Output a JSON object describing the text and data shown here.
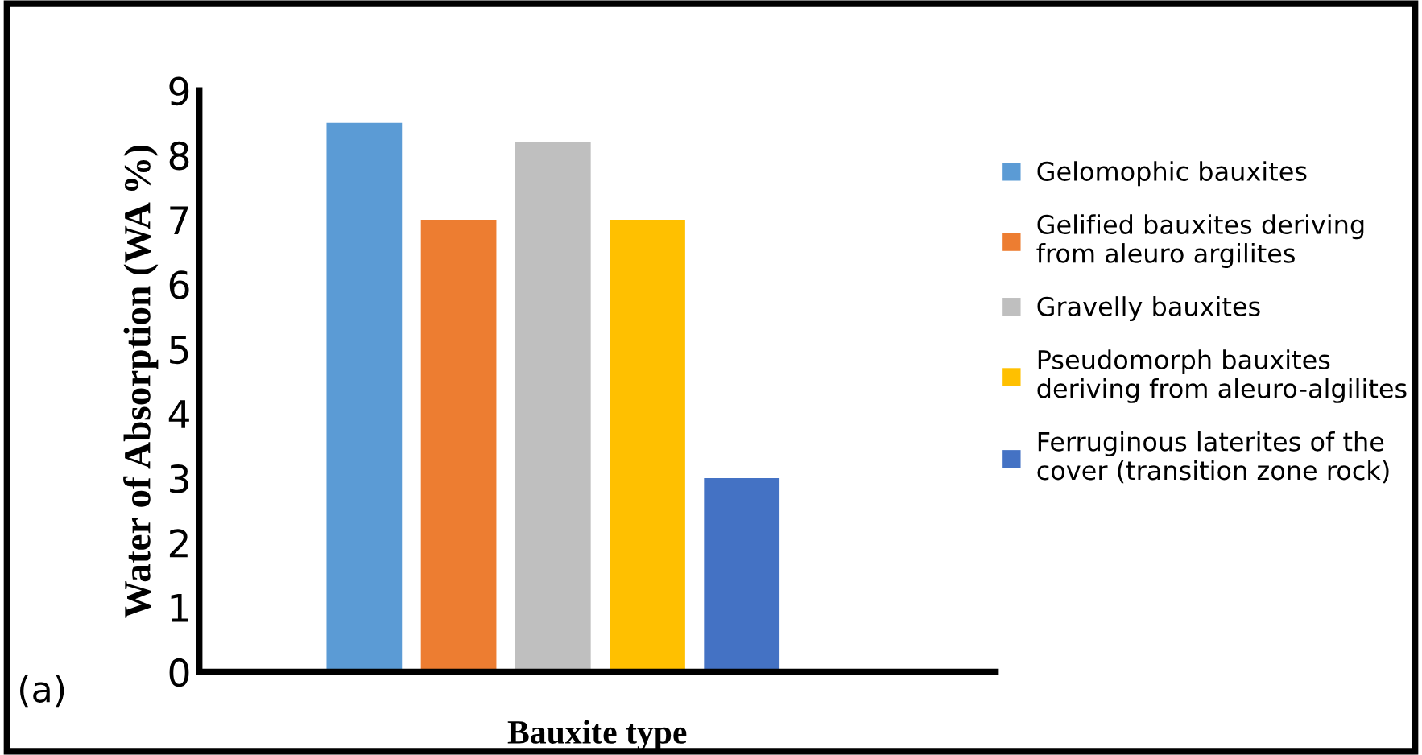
{
  "chart_data": {
    "type": "bar",
    "xlabel": "Bauxite type",
    "ylabel": "Water of Absorption (WA %)",
    "annotations": [
      "(a)"
    ],
    "categories": [
      null
    ],
    "series": [
      {
        "name": "Gelomophic bauxites",
        "color": "#5b9bd5",
        "values": [
          8.5
        ]
      },
      {
        "name": "Gelified bauxites deriving\nfrom aleuro argilites",
        "color": "#ed7d31",
        "values": [
          7
        ]
      },
      {
        "name": "Gravelly bauxites",
        "color": "#bfbfbf",
        "values": [
          8.2
        ]
      },
      {
        "name": "Pseudomorph bauxites\nderiving from aleuro-algilites",
        "color": "#ffc000",
        "values": [
          7
        ]
      },
      {
        "name": "Ferruginous laterites of the\ncover (transition zone rock)",
        "color": "#4472c4",
        "values": [
          3
        ]
      }
    ],
    "ylim": [
      0,
      9
    ],
    "yticks": [
      0,
      1,
      2,
      3,
      4,
      5,
      6,
      7,
      8,
      9
    ],
    "grid": false,
    "legend": "right"
  }
}
